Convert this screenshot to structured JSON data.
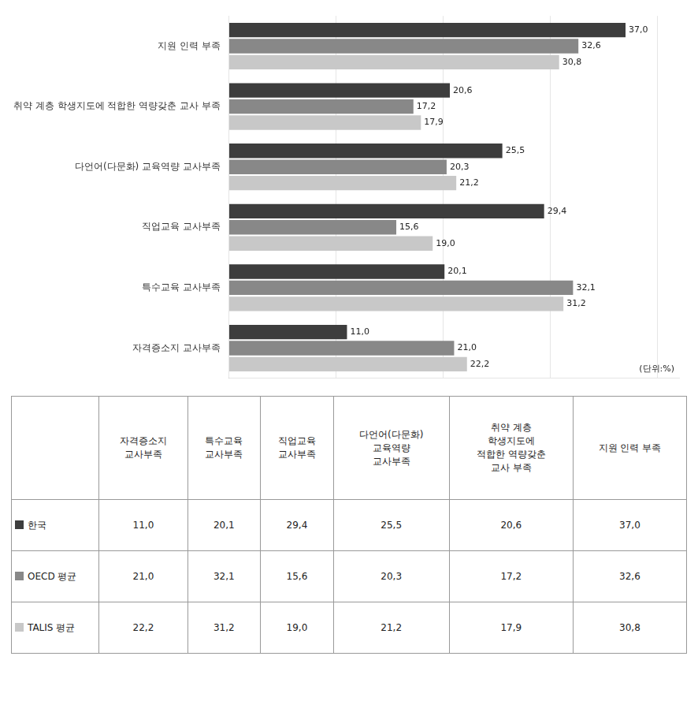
{
  "chart_data": [
    {
      "type": "bar",
      "orientation": "horizontal",
      "categories": [
        "지원 인력 부족",
        "취약 계층 학생지도에 적합한 역량갖춘 교사 부족",
        "다언어(다문화) 교육역량 교사부족",
        "직업교육 교사부족",
        "특수교육 교사부족",
        "자격증소지 교사부족"
      ],
      "series": [
        {
          "name": "한국",
          "color": "#3d3d3d",
          "values": [
            37.0,
            20.6,
            25.5,
            29.4,
            20.1,
            11.0
          ],
          "value_labels": [
            "37,0",
            "20,6",
            "25,5",
            "29,4",
            "20,1",
            "11,0"
          ]
        },
        {
          "name": "OECD 평균",
          "color": "#888888",
          "values": [
            32.6,
            17.2,
            20.3,
            15.6,
            32.1,
            21.0
          ],
          "value_labels": [
            "32,6",
            "17,2",
            "20,3",
            "15,6",
            "32,1",
            "21,0"
          ]
        },
        {
          "name": "TALIS 평균",
          "color": "#c8c8c8",
          "values": [
            30.8,
            17.9,
            21.2,
            19.0,
            31.2,
            22.2
          ],
          "value_labels": [
            "30,8",
            "17,9",
            "21,2",
            "19,0",
            "31,2",
            "22,2"
          ]
        }
      ],
      "xlim": [
        0,
        42
      ],
      "xticks": [
        10,
        20,
        30,
        40
      ],
      "grid": true,
      "tick_labels": "y",
      "data_labels": true,
      "annotations": [
        {
          "text": "(단위:%)"
        }
      ]
    },
    {
      "type": "table",
      "categories": [
        "자격증소지\n교사부족",
        "특수교육\n교사부족",
        "직업교육\n교사부족",
        "다언어(다문화)\n교육역량\n교사부족",
        "취약 계층\n학생지도에\n적합한 역량갖춘\n교사 부족",
        "지원 인력 부족"
      ],
      "series": [
        {
          "name": "한국",
          "color": "#3d3d3d",
          "values": [
            11.0,
            20.1,
            29.4,
            25.5,
            20.6,
            37.0
          ],
          "value_labels": [
            "11,0",
            "20,1",
            "29,4",
            "25,5",
            "20,6",
            "37,0"
          ]
        },
        {
          "name": "OECD 평균",
          "color": "#888888",
          "values": [
            21.0,
            32.1,
            15.6,
            20.3,
            17.2,
            32.6
          ],
          "value_labels": [
            "21,0",
            "32,1",
            "15,6",
            "20,3",
            "17,2",
            "32,6"
          ]
        },
        {
          "name": "TALIS 평균",
          "color": "#c8c8c8",
          "values": [
            22.2,
            31.2,
            19.0,
            21.2,
            17.9,
            30.8
          ],
          "value_labels": [
            "22,2",
            "31,2",
            "19,0",
            "21,2",
            "17,9",
            "30,8"
          ]
        }
      ]
    }
  ]
}
